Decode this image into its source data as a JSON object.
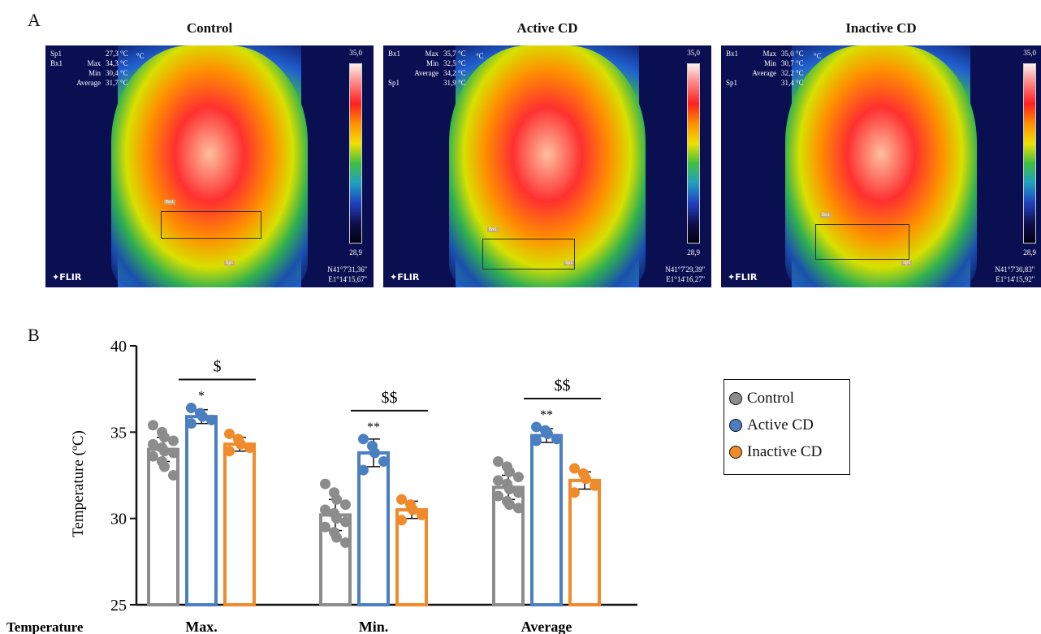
{
  "panel_a": "A",
  "panel_b": "B",
  "images": [
    {
      "title": "Control",
      "unit": "°C",
      "measurements": [
        {
          "id": "Sp1",
          "label": "",
          "value": "27,3 °C"
        },
        {
          "id": "Bx1",
          "label": "Max",
          "value": "34,3 °C"
        },
        {
          "id": "",
          "label": "Min",
          "value": "30,4 °C"
        },
        {
          "id": "",
          "label": "Average",
          "value": "31,7 °C"
        }
      ],
      "scale_max": "35,0",
      "scale_min": "28,9",
      "gps_n": "N41°7'31,36''",
      "gps_e": "E1°14'15,67''"
    },
    {
      "title": "Active CD",
      "unit": "°C",
      "measurements": [
        {
          "id": "Bx1",
          "label": "Max",
          "value": "35,7 °C"
        },
        {
          "id": "",
          "label": "Min",
          "value": "32,5 °C"
        },
        {
          "id": "",
          "label": "Average",
          "value": "34,2 °C"
        },
        {
          "id": "Sp1",
          "label": "",
          "value": "31,9 °C"
        }
      ],
      "scale_max": "35,0",
      "scale_min": "28,9",
      "gps_n": "N41°7'29,39''",
      "gps_e": "E1°14'16,27''"
    },
    {
      "title": "Inactive CD",
      "unit": "°C",
      "measurements": [
        {
          "id": "Bx1",
          "label": "Max",
          "value": "35,0 °C"
        },
        {
          "id": "",
          "label": "Min",
          "value": "30,7 °C"
        },
        {
          "id": "",
          "label": "Average",
          "value": "32,2 °C"
        },
        {
          "id": "Sp1",
          "label": "",
          "value": "31,4 °C"
        }
      ],
      "scale_max": "35,0",
      "scale_min": "28,9",
      "gps_n": "N41°7'30,83''",
      "gps_e": "E1°14'15,92''"
    }
  ],
  "flir_logo": "FLIR",
  "box_label": "Bx1",
  "spot_label": "Sp1",
  "chart_data": {
    "type": "bar",
    "categories": [
      "Max.",
      "Min.",
      "Average"
    ],
    "row_label": "Temperature",
    "ylabel": "Temperature (ºC)",
    "ylim": [
      25,
      40
    ],
    "yticks": [
      25,
      30,
      35,
      40
    ],
    "series": [
      {
        "name": "Control",
        "color": "#8c8c8c",
        "values": [
          34.0,
          30.2,
          31.8
        ],
        "errors": [
          0.7,
          0.9,
          0.7
        ],
        "points": [
          [
            35.4,
            35.0,
            34.7,
            34.5,
            34.3,
            34.1,
            33.9,
            33.8,
            33.6,
            33.3,
            33.0,
            32.5
          ],
          [
            32.0,
            31.5,
            31.1,
            30.8,
            30.5,
            30.3,
            30.0,
            29.8,
            29.5,
            29.2,
            28.9,
            28.6
          ],
          [
            33.3,
            33.0,
            32.7,
            32.4,
            32.2,
            32.0,
            31.7,
            31.5,
            31.3,
            31.0,
            30.8,
            30.6
          ]
        ]
      },
      {
        "name": "Active CD",
        "color": "#4a7fc1",
        "values": [
          35.9,
          33.8,
          34.8
        ],
        "errors": [
          0.4,
          0.8,
          0.4
        ],
        "points": [
          [
            36.4,
            36.1,
            35.9,
            35.7,
            35.5
          ],
          [
            34.6,
            34.2,
            33.8,
            33.3,
            32.8
          ],
          [
            35.3,
            35.1,
            34.9,
            34.6,
            34.5
          ]
        ]
      },
      {
        "name": "Inactive CD",
        "color": "#f08a2a",
        "values": [
          34.3,
          30.5,
          32.2
        ],
        "errors": [
          0.4,
          0.5,
          0.5
        ],
        "points": [
          [
            34.9,
            34.6,
            34.3,
            34.1,
            33.9
          ],
          [
            31.1,
            30.8,
            30.5,
            30.2,
            29.9
          ],
          [
            32.9,
            32.6,
            32.3,
            31.9,
            31.5
          ]
        ]
      }
    ],
    "significance": [
      {
        "group": 0,
        "label": "$",
        "star": "*"
      },
      {
        "group": 1,
        "label": "$$",
        "star": "**"
      },
      {
        "group": 2,
        "label": "$$",
        "star": "**"
      }
    ],
    "legend": [
      "Control",
      "Active CD",
      "Inactive CD"
    ]
  }
}
